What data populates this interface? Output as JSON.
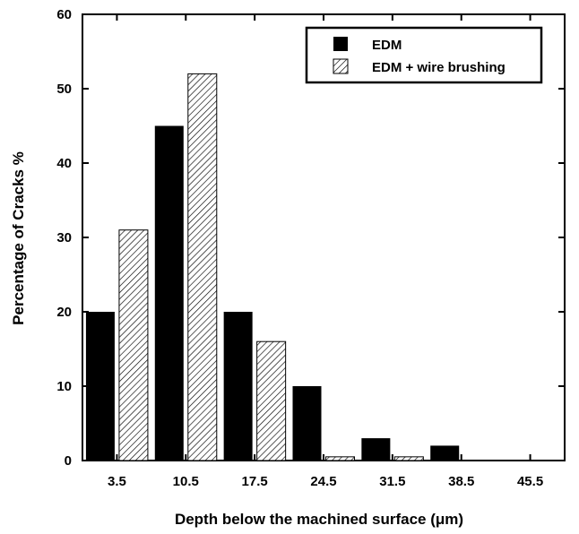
{
  "chart_data": {
    "type": "bar",
    "categories": [
      "3.5",
      "10.5",
      "17.5",
      "24.5",
      "31.5",
      "38.5",
      "45.5"
    ],
    "series": [
      {
        "name": "EDM",
        "values": [
          20,
          45,
          20,
          10,
          3,
          2,
          0
        ],
        "pattern": "solid",
        "color": "#000000"
      },
      {
        "name": "EDM + wire brushing",
        "values": [
          31,
          52,
          16,
          0.5,
          0.5,
          0,
          0
        ],
        "pattern": "hatched",
        "color": "#000000"
      }
    ],
    "xlabel": "Depth below the machined surface (μm)",
    "ylabel": "Percentage of Cracks %",
    "ylim": [
      0,
      60
    ],
    "yticks": [
      "0",
      "10",
      "20",
      "30",
      "40",
      "50",
      "60"
    ],
    "grid": false,
    "legend_position": "top-right"
  }
}
